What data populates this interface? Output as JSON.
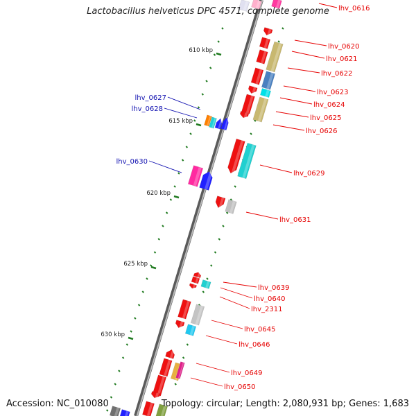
{
  "title": "Lactobacillus helveticus DPC 4571, complete genome",
  "accession": "Accession: NC_010080",
  "topology": "Topology: circular; Length: 2,080,931 bp; Genes: 1,683",
  "colors": {
    "backbone": "#8a8a8a",
    "tick": "#1f7a1f",
    "red_label": "#e60000",
    "blue_label": "#1010b0"
  },
  "kbp_ticks": [
    "610 kbp",
    "615 kbp",
    "620 kbp",
    "625 kbp",
    "630 kbp"
  ],
  "gene_labels_right": [
    {
      "name": "lhv_0616"
    },
    {
      "name": "lhv_0620"
    },
    {
      "name": "lhv_0621"
    },
    {
      "name": "lhv_0622"
    },
    {
      "name": "lhv_0623"
    },
    {
      "name": "lhv_0624"
    },
    {
      "name": "lhv_0625"
    },
    {
      "name": "lhv_0626"
    },
    {
      "name": "lhv_0629"
    },
    {
      "name": "lhv_0631"
    },
    {
      "name": "lhv_0639"
    },
    {
      "name": "lhv_0640"
    },
    {
      "name": "lhv_2311"
    },
    {
      "name": "lhv_0645"
    },
    {
      "name": "lhv_0646"
    },
    {
      "name": "lhv_0649"
    },
    {
      "name": "lhv_0650"
    }
  ],
  "gene_labels_left": [
    {
      "name": "lhv_0627"
    },
    {
      "name": "lhv_0628"
    },
    {
      "name": "lhv_0630"
    }
  ]
}
